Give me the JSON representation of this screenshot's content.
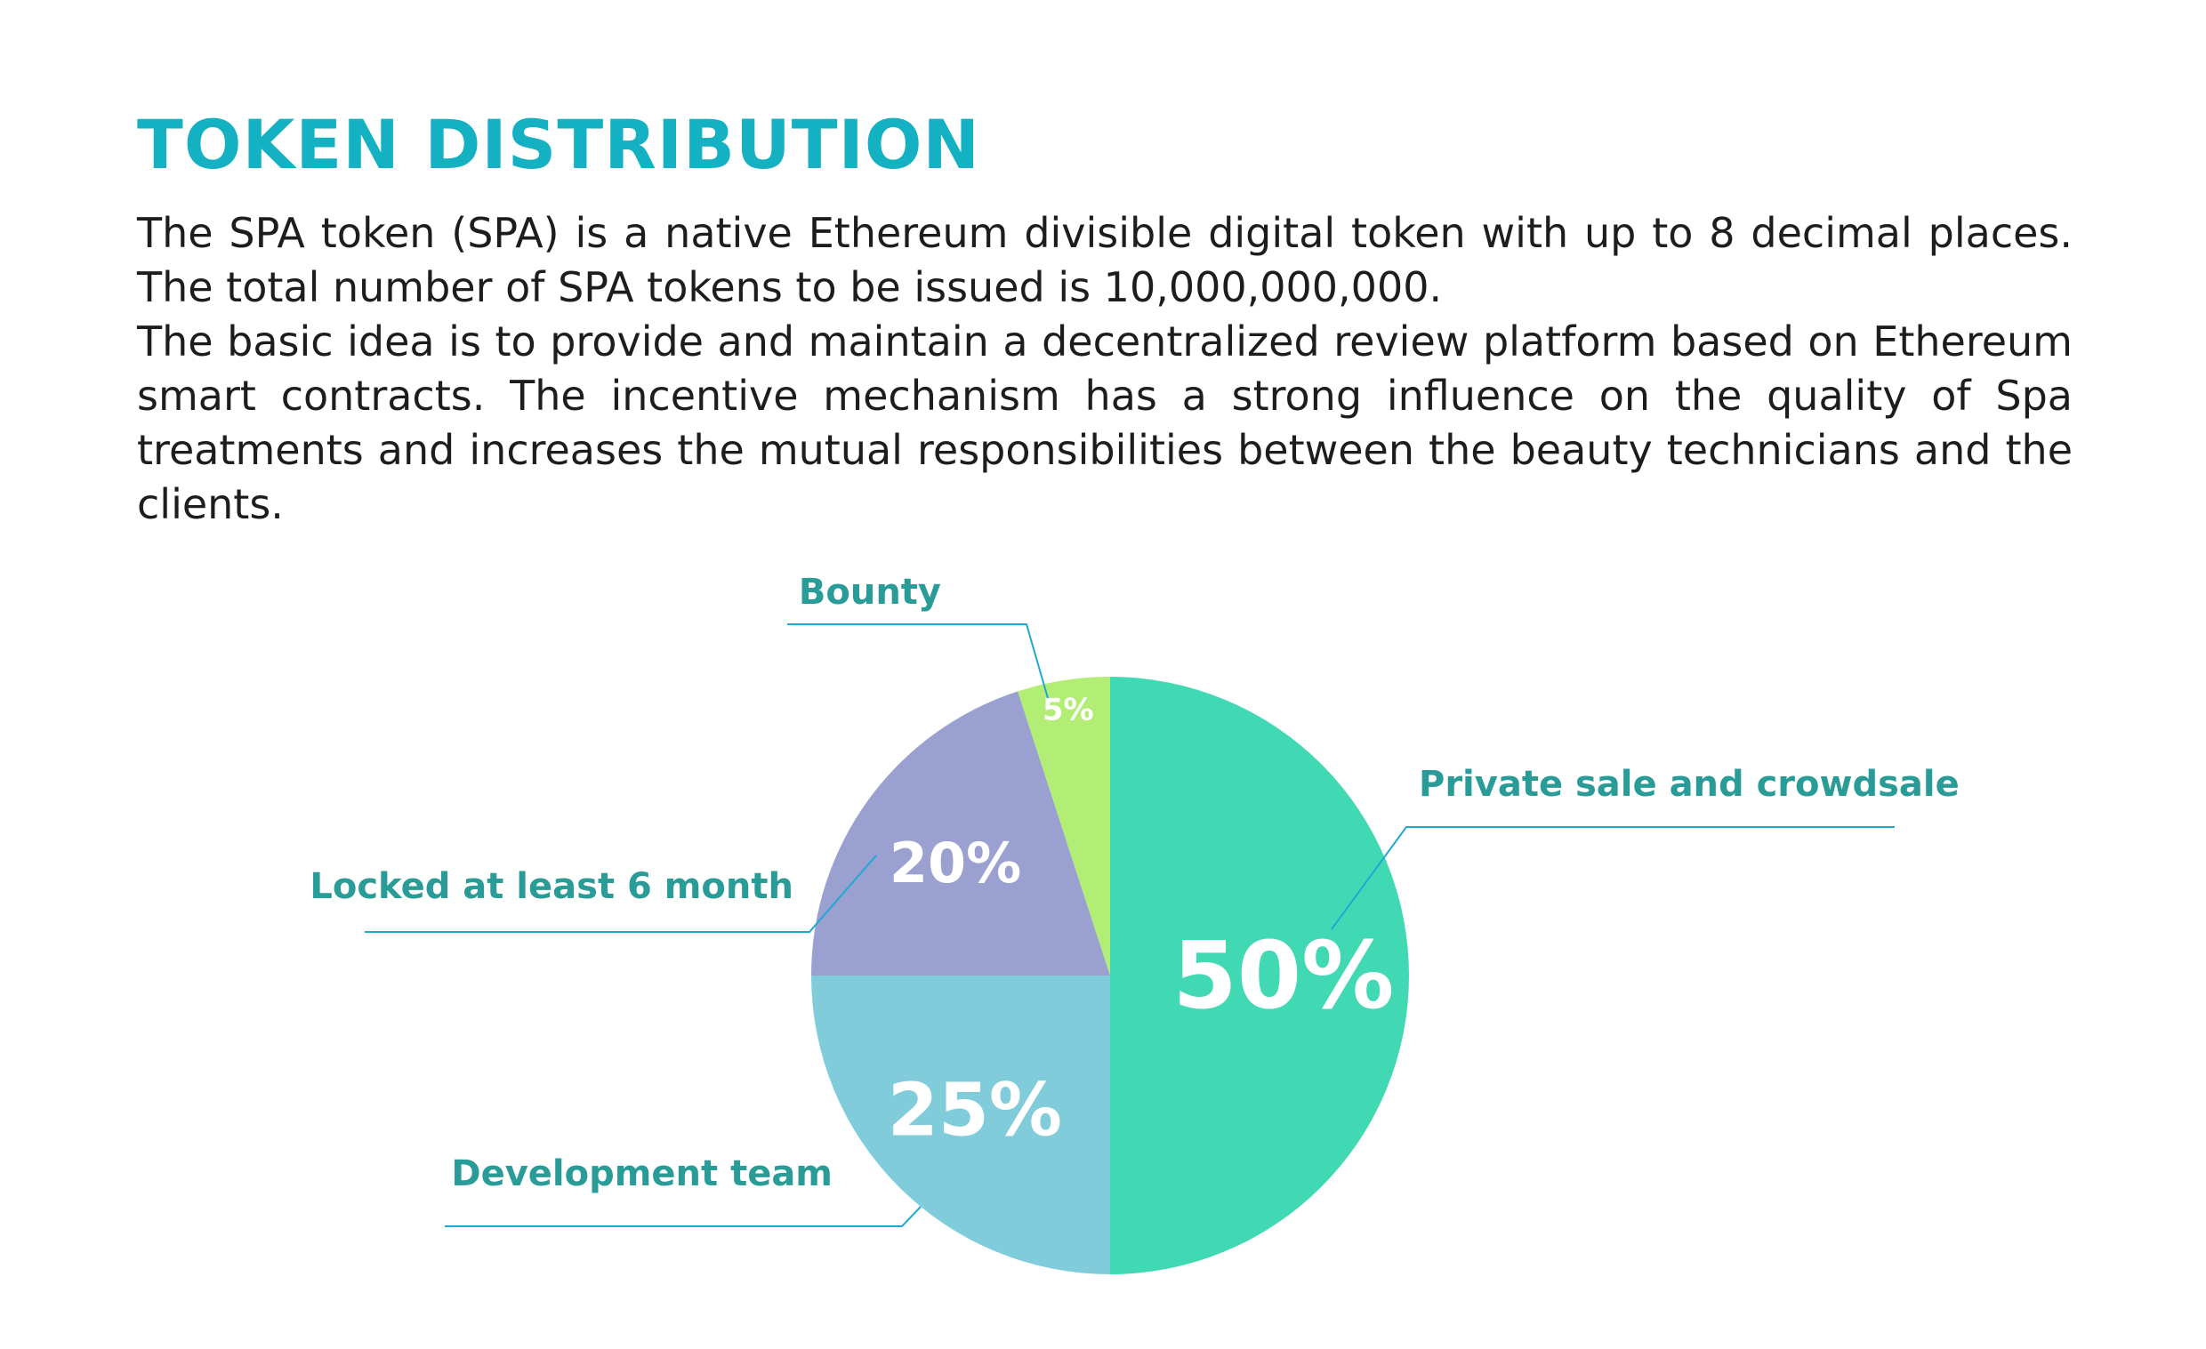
{
  "page": {
    "title": "TOKEN DISTRIBUTION",
    "paragraphs": [
      "The SPA token (SPA) is a native Ethereum divisible digital token with up to 8 decimal places. The total number of SPA tokens to be issued is 10,000,000,000.",
      "The basic idea is to provide and maintain a decentralized review platform based on Ethereum smart contracts. The incentive mechanism has a strong influence on the quality of Spa treatments and increases the mutual responsibilities between the beauty technicians and the clients."
    ]
  },
  "chart_data": {
    "type": "pie",
    "unit": "%",
    "slices": [
      {
        "label": "Private sale and crowdsale",
        "value": 50,
        "value_label": "50%",
        "color": "#40d9b4"
      },
      {
        "label": "Development team",
        "value": 25,
        "value_label": "25%",
        "color": "#80ccdb"
      },
      {
        "label": "Locked at least 6 month",
        "value": 20,
        "value_label": "20%",
        "color": "#9aa0d0"
      },
      {
        "label": "Bounty",
        "value": 5,
        "value_label": "5%",
        "color": "#b2ee76"
      }
    ],
    "leader_line_color": "#1ea9d2"
  }
}
